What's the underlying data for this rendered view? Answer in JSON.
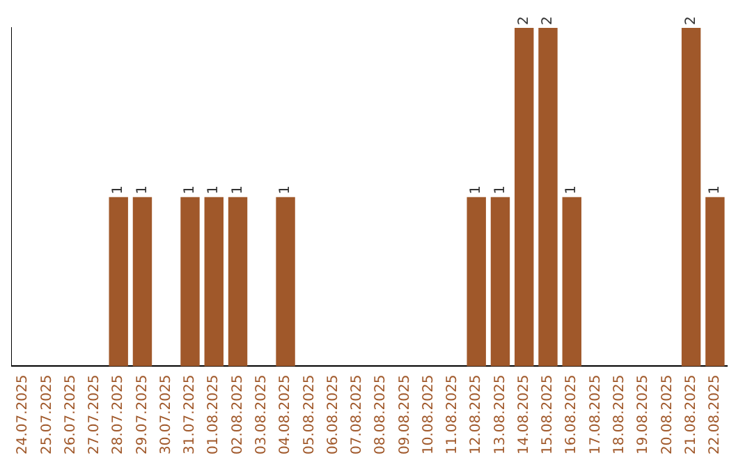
{
  "chart_data": {
    "type": "bar",
    "categories": [
      "24.07.2025",
      "25.07.2025",
      "26.07.2025",
      "27.07.2025",
      "28.07.2025",
      "29.07.2025",
      "30.07.2025",
      "31.07.2025",
      "01.08.2025",
      "02.08.2025",
      "03.08.2025",
      "04.08.2025",
      "05.08.2025",
      "06.08.2025",
      "07.08.2025",
      "08.08.2025",
      "09.08.2025",
      "10.08.2025",
      "11.08.2025",
      "12.08.2025",
      "13.08.2025",
      "14.08.2025",
      "15.08.2025",
      "16.08.2025",
      "17.08.2025",
      "18.08.2025",
      "19.08.2025",
      "20.08.2025",
      "21.08.2025",
      "22.08.2025"
    ],
    "values": [
      0,
      0,
      0,
      0,
      1,
      1,
      0,
      1,
      1,
      1,
      0,
      1,
      0,
      0,
      0,
      0,
      0,
      0,
      0,
      1,
      1,
      2,
      2,
      1,
      0,
      0,
      0,
      0,
      2,
      1
    ],
    "value_labels": [
      null,
      null,
      null,
      null,
      "1",
      "1",
      null,
      "1",
      "1",
      "1",
      null,
      "1",
      null,
      null,
      null,
      null,
      null,
      null,
      null,
      "1",
      "1",
      "2",
      "2",
      "1",
      null,
      null,
      null,
      null,
      "2",
      "1"
    ],
    "color": "#a0582a",
    "grid": false,
    "legend": false
  }
}
